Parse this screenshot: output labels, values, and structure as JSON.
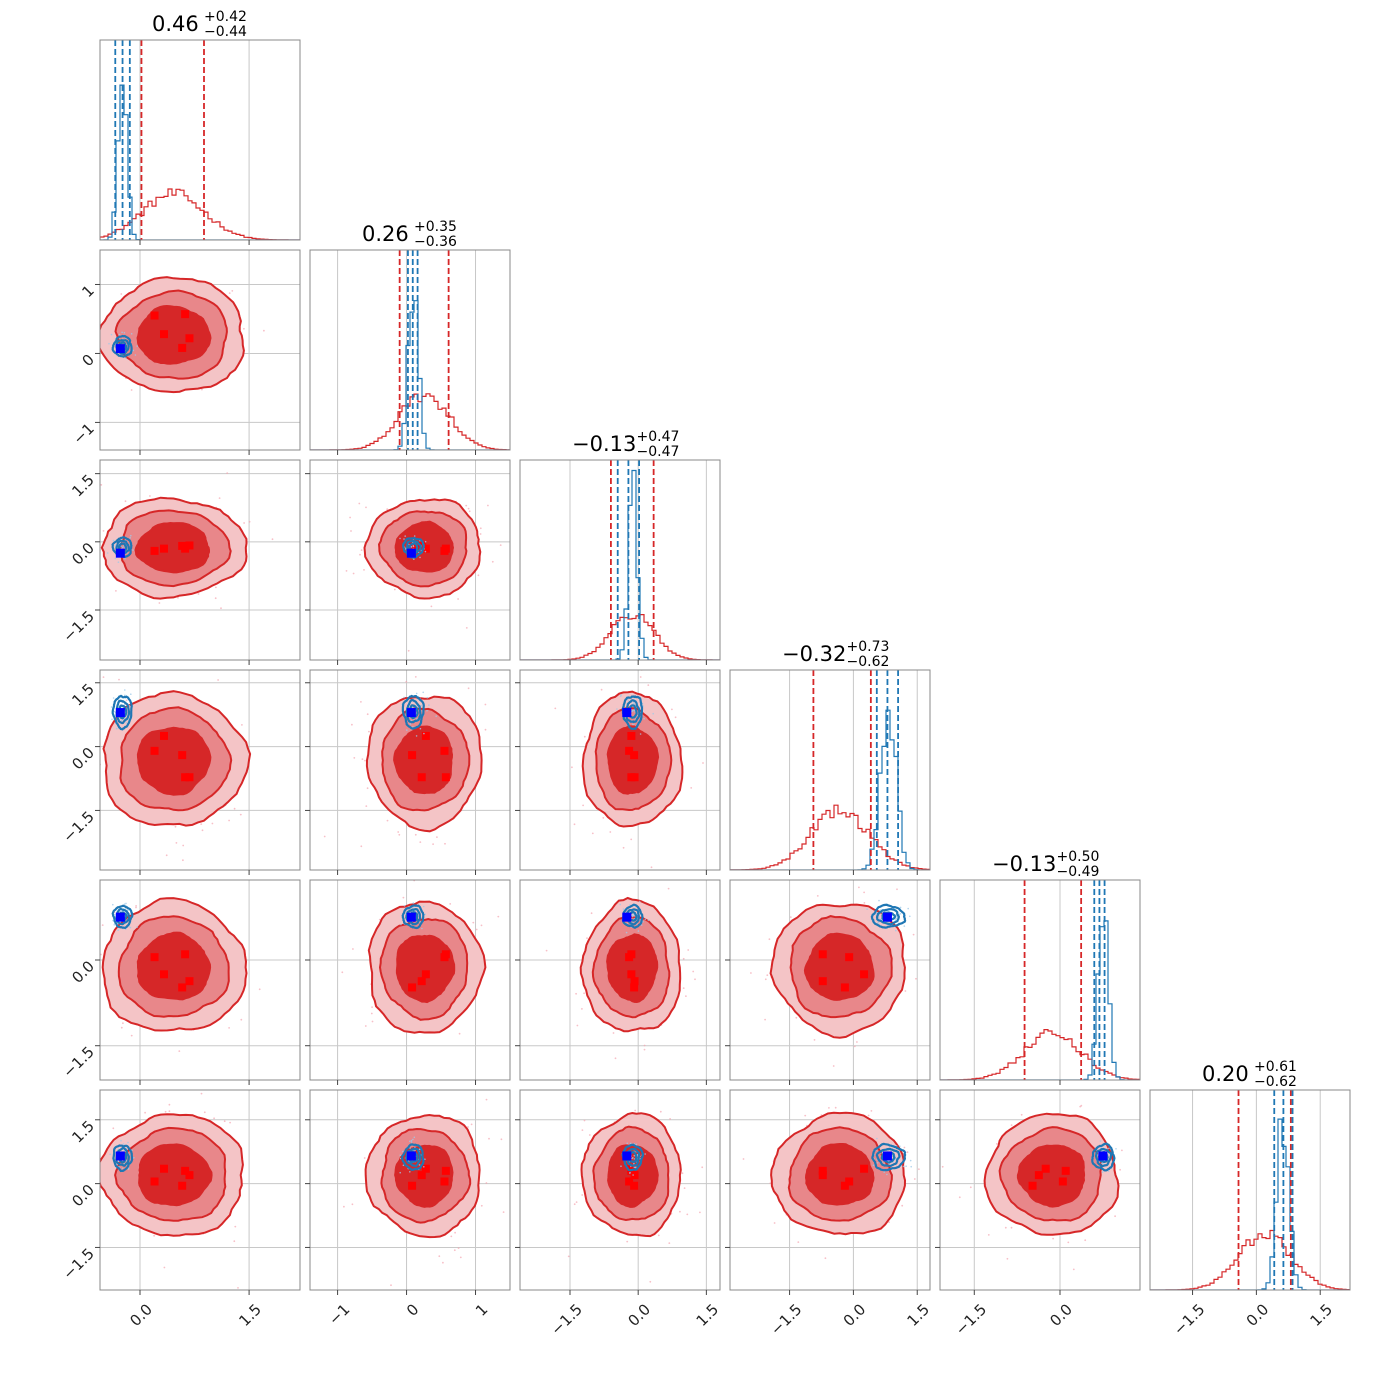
{
  "colors": {
    "reference_posterior": "#d62728",
    "reference_fill_1sigma": "#d62728",
    "reference_fill_2sigma": "#e8878a",
    "reference_fill_3sigma": "#f4c4c6",
    "reference_scatter": "#f4a5b0",
    "comparison_posterior": "#1f77b4",
    "comparison_scatter": "#9ec9e8",
    "comparison_marker": "#0000ff",
    "reference_marker": "#ff0000",
    "grid": "#c8c8c8",
    "frame": "#888888"
  },
  "chart_data": {
    "type": "corner",
    "n_params": 6,
    "grid": true,
    "axis_ranges": [
      [
        -0.55,
        2.2
      ],
      [
        -1.4,
        1.5
      ],
      [
        -2.6,
        1.8
      ],
      [
        -2.9,
        1.8
      ],
      [
        -2.1,
        1.4
      ],
      [
        -2.5,
        2.2
      ]
    ],
    "tick_values": [
      [
        0.0,
        1.5
      ],
      [
        -1,
        0,
        1
      ],
      [
        -1.5,
        0.0,
        1.5
      ],
      [
        -1.5,
        0.0,
        1.5
      ],
      [
        -1.5,
        0.0
      ],
      [
        -1.5,
        0.0,
        1.5
      ]
    ],
    "tick_labels": [
      [
        "0.0",
        "1.5"
      ],
      [
        "−1",
        "0",
        "1"
      ],
      [
        "−1.5",
        "0.0",
        "1.5"
      ],
      [
        "−1.5",
        "0.0",
        "1.5"
      ],
      [
        "−1.5",
        "0.0"
      ],
      [
        "−1.5",
        "0.0",
        "1.5"
      ]
    ],
    "titles": [
      {
        "median": "0.46",
        "plus": "+0.42",
        "minus": "−0.44"
      },
      {
        "median": "0.26",
        "plus": "+0.35",
        "minus": "−0.36"
      },
      {
        "median": "−0.13",
        "plus": "+0.47",
        "minus": "−0.47"
      },
      {
        "median": "−0.32",
        "plus": "+0.73",
        "minus": "−0.62"
      },
      {
        "median": "−0.13",
        "plus": "+0.50",
        "minus": "−0.49"
      },
      {
        "median": "0.20",
        "plus": "+0.61",
        "minus": "−0.62"
      }
    ],
    "series": [
      {
        "color_key": "reference_posterior",
        "means": [
          0.46,
          0.26,
          -0.13,
          -0.32,
          -0.13,
          0.2
        ],
        "stds": [
          0.43,
          0.36,
          0.47,
          0.68,
          0.5,
          0.62
        ],
        "quantiles": [
          [
            0.02,
            0.88
          ],
          [
            -0.1,
            0.61
          ],
          [
            -0.6,
            0.34
          ],
          [
            -0.94,
            0.41
          ],
          [
            -0.62,
            0.37
          ],
          [
            -0.42,
            0.81
          ]
        ]
      },
      {
        "color_key": "comparison_posterior",
        "means": [
          -0.24,
          0.1,
          -0.12,
          0.82,
          0.76,
          0.62
        ],
        "stds": [
          0.06,
          0.07,
          0.1,
          0.18,
          0.09,
          0.14
        ],
        "quantiles": [
          [
            -0.34,
            -0.14
          ],
          [
            0.02,
            0.16
          ],
          [
            -0.45,
            0.02
          ],
          [
            0.55,
            1.05
          ],
          [
            0.6,
            0.78
          ],
          [
            0.42,
            0.85
          ]
        ]
      }
    ],
    "comparison_markers": [
      -0.27,
      0.07,
      -0.25,
      0.8,
      0.75,
      0.65
    ],
    "reference_markers": [
      [
        0.33,
        0.2,
        0.62,
        0.58,
        0.68
      ],
      [
        0.28,
        0.55,
        0.57,
        0.08,
        0.22
      ],
      [
        -0.15,
        -0.2,
        -0.15,
        -0.09,
        -0.08
      ],
      [
        0.25,
        -0.1,
        -0.72,
        -0.2,
        -0.72
      ],
      [
        -0.25,
        0.05,
        0.1,
        -0.48,
        -0.37
      ],
      [
        0.35,
        0.05,
        0.3,
        -0.05,
        0.2
      ]
    ]
  }
}
